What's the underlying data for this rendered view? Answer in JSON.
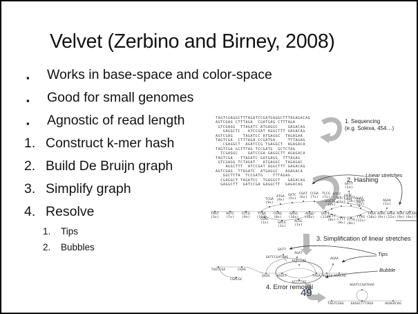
{
  "slide": {
    "title": "Velvet (Zerbino and Birney, 2008)",
    "page_number": "49",
    "bullets": [
      {
        "marker": "▪",
        "label": "Works in base-space and color-space"
      },
      {
        "marker": "▪",
        "label": "Good for small genomes"
      },
      {
        "marker": "▪",
        "label": "Agnostic of read length"
      }
    ],
    "numbered_items": [
      {
        "num": "1.",
        "label": "Construct k-mer hash"
      },
      {
        "num": "2.",
        "label": "Build De Bruijn graph"
      },
      {
        "num": "3.",
        "label": "Simplify graph"
      },
      {
        "num": "4.",
        "label": "Resolve"
      }
    ],
    "sub_items": [
      {
        "num": "1.",
        "label": "Tips"
      },
      {
        "num": "2.",
        "label": "Bubbles"
      }
    ]
  },
  "diagram": {
    "steps": {
      "step1": "1. Sequencing",
      "step1_sub": "(e.g. Solexa, 454…)",
      "step2": "2. Hashing",
      "step3": "3. Simplification of linear stretches",
      "step4": "4. Error removal"
    },
    "annotations": {
      "linear_stretches": "Linear stretches",
      "tips": "Tips",
      "bubble": "Bubble"
    },
    "reads": {
      "lines": [
        "TAGTCGAGGCTTTAGATCCGATGAGGCTTTAGAGACAG",
        "AGTCGAG CTTTAGA  CGATGAG CTTTAGA",
        " GTCGAGG  TTAGATC ATGAGGC    GAGACAG",
        "   GAGGCTC   ATCCGAT AGGCTTT GAGACAG",
        "AGTCGAG    TAGATCC ATGAGGC  TAGAGAA",
        "TAGTCGA  CTTTAGA CCGATGA     TTTAGAG",
        "   CGAGGCT  AGATCCG TGAGGCT  AGAGACA",
        "TAGTCGA GCTTTAG TCCGATG  GCTCTAG",
        "  TCGAGGC    GATCCGA GAGGCTT AGAGACA",
        "TAGTCGA   TTAGATC GATGAGG  TTTAGAG",
        " GTCGAGG TCTAGAT   ATGAGGC  TAGAGAC",
        "    AGGCTTT  ATCCGAT AGGCTTT GAGACAG",
        "AGTCGAG  TTAGATC  ATGAGGC   AGAGACA",
        "   GGCTTTA  TCCGATG    TTTAGAG",
        "  CGAGGCT TAGATCC  TGAGGCT   GAGACAG",
        "  GAGGCTT  GATCCGA GAGGCTT  GAGACAG"
      ]
    },
    "graph1": {
      "top_row": [
        {
          "k": "TCGA",
          "c": "(9x)"
        },
        {
          "k": "ATGA",
          "c": "(9x)"
        },
        {
          "k": "GATC",
          "c": "(5x)"
        },
        {
          "k": "CGAT",
          "c": "(6x)"
        },
        {
          "k": "CCGA",
          "c": "(7x)"
        },
        {
          "k": "TCCG",
          "c": "(7x)"
        },
        {
          "k": "ATCC",
          "c": "(7x)"
        },
        {
          "k": "GATC",
          "c": "(8x)"
        },
        {
          "k": "AGAT",
          "c": "(8x)"
        }
      ],
      "bottom_left": [
        {
          "k": "TAGT",
          "c": "(3x)"
        },
        {
          "k": "AGTC",
          "c": "(7x)"
        },
        {
          "k": "GTCG",
          "c": "(9x)"
        },
        {
          "k": "TCGA",
          "c": "(10x)"
        },
        {
          "k": "CGAG",
          "c": "(8x)"
        },
        {
          "k": "GAGG",
          "c": "(16x)"
        },
        {
          "k": "AGGC",
          "c": "(16x)"
        },
        {
          "k": "GGCT",
          "c": "(11x)"
        }
      ],
      "bubble_top": [
        {
          "k": "GCTC",
          "c": "(2x)"
        },
        {
          "k": "CTCT",
          "c": "(1x)"
        },
        {
          "k": "TCTA",
          "c": "(2x)"
        },
        {
          "k": "CTAG",
          "c": "(2x)"
        }
      ],
      "bubble_bottom": [
        {
          "k": "GCTT",
          "c": "(8x)"
        },
        {
          "k": "CTTT",
          "c": "(8x)"
        },
        {
          "k": "TTTA",
          "c": "(8x)"
        },
        {
          "k": "TTAG",
          "c": "(12x)"
        }
      ],
      "bottom_right": [
        {
          "k": "TAGA",
          "c": "(16x)"
        },
        {
          "k": "AGAG",
          "c": "(9x)"
        },
        {
          "k": "GAGA",
          "c": "(12x)"
        },
        {
          "k": "AGAC",
          "c": "(9x)"
        },
        {
          "k": "GACA",
          "c": "(8x)"
        },
        {
          "k": "ACAG",
          "c": "(5x)"
        }
      ],
      "error_branch": [
        {
          "k": "CGAC",
          "c": "(1x)"
        },
        {
          "k": "GACG",
          "c": "(1x)"
        },
        {
          "k": "ACGC",
          "c": "(1x)"
        }
      ],
      "tip_top": {
        "k": "GATT",
        "c": "(1x)"
      },
      "tip_right": {
        "k": "AGAA",
        "c": "(1x)"
      }
    },
    "graph2": {
      "labels": [
        {
          "t": "TAGTCGA"
        },
        {
          "t": "CGAG"
        },
        {
          "t": "GAGG"
        },
        {
          "t": "AGGCT"
        },
        {
          "t": "GCTCTAG"
        },
        {
          "t": "GCTTTAG"
        },
        {
          "t": "TAGA"
        },
        {
          "t": "AGAGA"
        },
        {
          "t": "AGACAG"
        },
        {
          "t": "CGACGC"
        },
        {
          "t": "GATT"
        },
        {
          "t": "AGAT"
        },
        {
          "t": "AGAA"
        },
        {
          "t": "GATCCGATGAG"
        }
      ]
    },
    "graph3": {
      "labels": [
        {
          "t": "TAGTCGAG"
        },
        {
          "t": "GAGGCTTTAGA"
        },
        {
          "t": "AGAGACAG"
        },
        {
          "t": "AGATCCGATGAG"
        }
      ]
    }
  }
}
